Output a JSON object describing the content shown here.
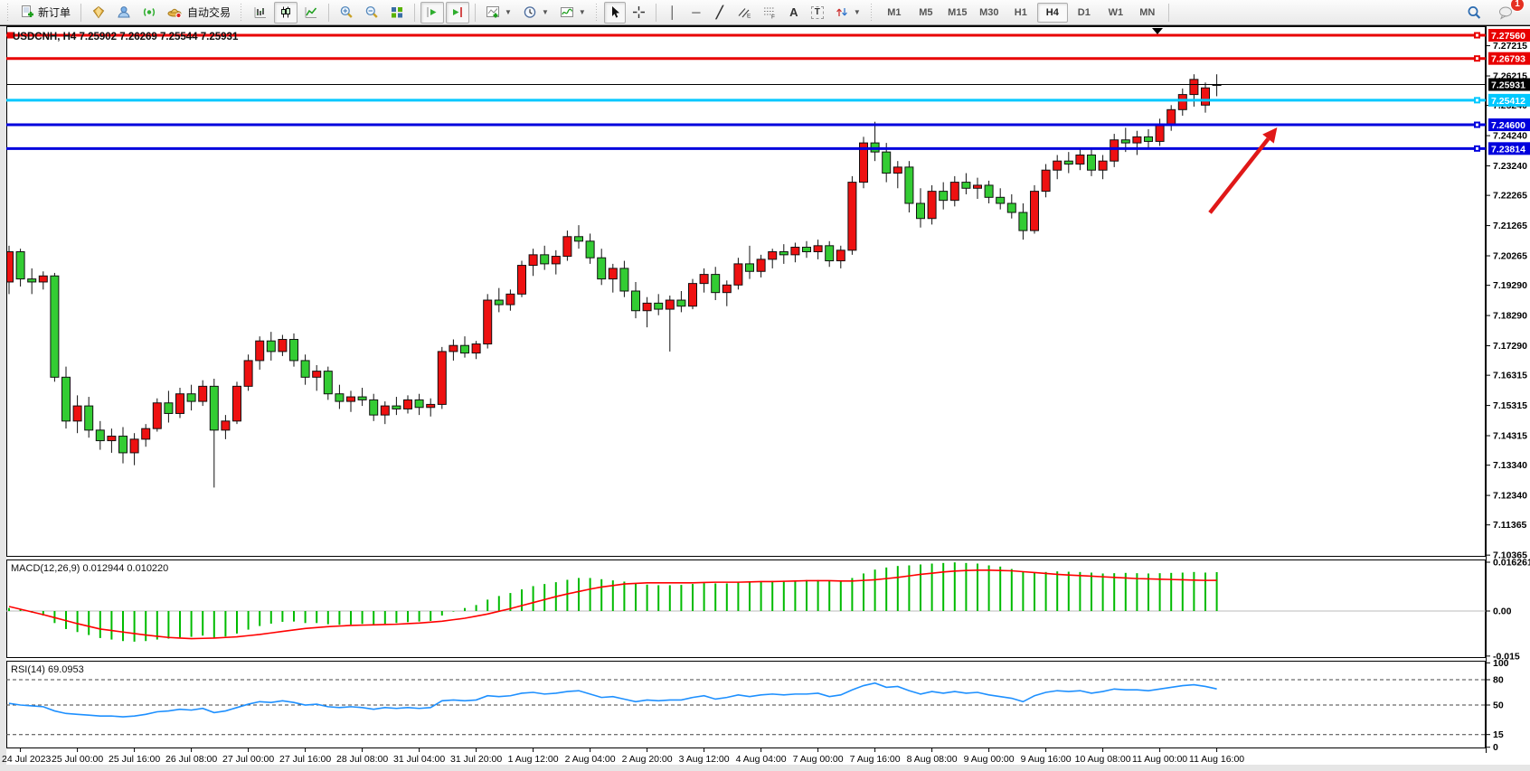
{
  "toolbar": {
    "new_order_label": "新订单",
    "autotrade_label": "自动交易",
    "timeframes": [
      "M1",
      "M5",
      "M15",
      "M30",
      "H1",
      "H4",
      "D1",
      "W1",
      "MN"
    ],
    "active_timeframe": "H4",
    "notification_count": "1"
  },
  "chart": {
    "title": "USDCNH, H4  7.25902 7.26269 7.25544 7.25931",
    "symbol": "USDCNH",
    "timeframe": "H4",
    "open": "7.25902",
    "high": "7.26269",
    "low": "7.25544",
    "close": "7.25931"
  },
  "price_axis": {
    "ticks": [
      "7.27215",
      "7.26215",
      "7.25240",
      "7.24240",
      "7.23240",
      "7.22265",
      "7.21265",
      "7.20265",
      "7.19290",
      "7.18290",
      "7.17290",
      "7.16315",
      "7.15315",
      "7.14315",
      "7.13340",
      "7.12340",
      "7.11365",
      "7.10365"
    ],
    "current_price": "7.25931",
    "current_price_color": "#000000"
  },
  "time_axis": [
    "24 Jul 2023",
    "25 Jul 00:00",
    "25 Jul 16:00",
    "26 Jul 08:00",
    "27 Jul 00:00",
    "27 Jul 16:00",
    "28 Jul 08:00",
    "31 Jul 04:00",
    "31 Jul 20:00",
    "1 Aug 12:00",
    "2 Aug 04:00",
    "2 Aug 20:00",
    "3 Aug 12:00",
    "4 Aug 04:00",
    "7 Aug 00:00",
    "7 Aug 16:00",
    "8 Aug 08:00",
    "9 Aug 00:00",
    "9 Aug 16:00",
    "10 Aug 08:00",
    "11 Aug 00:00",
    "11 Aug 16:00"
  ],
  "indicators": {
    "macd_label": "MACD(12,26,9) 0.012944 0.010220",
    "macd_ticks": [
      "0.016261",
      "0.00",
      "-0.015"
    ],
    "rsi_label": "RSI(14) 69.0953",
    "rsi_ticks": [
      "100",
      "80",
      "50",
      "15",
      "0"
    ],
    "rsi_levels": [
      80,
      50,
      15
    ]
  },
  "chart_data": [
    {
      "type": "candlestick",
      "title": "USDCNH, H4  7.25902 7.26269 7.25544 7.25931",
      "symbol": "USDCNH",
      "timeframe": "H4",
      "x_labels": [
        "24 Jul 2023",
        "25 Jul 00:00",
        "25 Jul 16:00",
        "26 Jul 08:00",
        "27 Jul 00:00",
        "27 Jul 16:00",
        "28 Jul 08:00",
        "31 Jul 04:00",
        "31 Jul 20:00",
        "1 Aug 12:00",
        "2 Aug 04:00",
        "2 Aug 20:00",
        "3 Aug 12:00",
        "4 Aug 04:00",
        "7 Aug 00:00",
        "7 Aug 16:00",
        "8 Aug 08:00",
        "9 Aug 00:00",
        "9 Aug 16:00",
        "10 Aug 08:00",
        "11 Aug 00:00",
        "11 Aug 16:00"
      ],
      "ylim": [
        7.1031,
        7.2786
      ],
      "bull_color": "#ee1111",
      "bear_color": "#33cc33",
      "outline_color": "#111111",
      "candles": [
        [
          7.194,
          7.206,
          7.19,
          7.204
        ],
        [
          7.204,
          7.205,
          7.1925,
          7.195
        ],
        [
          7.195,
          7.1985,
          7.19,
          7.194
        ],
        [
          7.194,
          7.1975,
          7.1915,
          7.196
        ],
        [
          7.196,
          7.197,
          7.161,
          7.1625
        ],
        [
          7.1625,
          7.166,
          7.1455,
          7.148
        ],
        [
          7.148,
          7.1565,
          7.144,
          7.153
        ],
        [
          7.153,
          7.156,
          7.1425,
          7.145
        ],
        [
          7.145,
          7.148,
          7.1385,
          7.1415
        ],
        [
          7.1415,
          7.1455,
          7.1375,
          7.143
        ],
        [
          7.143,
          7.146,
          7.134,
          7.1375
        ],
        [
          7.1375,
          7.144,
          7.1334,
          7.142
        ],
        [
          7.142,
          7.147,
          7.1395,
          7.1455
        ],
        [
          7.1455,
          7.1555,
          7.1445,
          7.154
        ],
        [
          7.154,
          7.158,
          7.1475,
          7.1505
        ],
        [
          7.1505,
          7.159,
          7.149,
          7.157
        ],
        [
          7.157,
          7.16,
          7.1515,
          7.1545
        ],
        [
          7.1545,
          7.1615,
          7.153,
          7.1595
        ],
        [
          7.1595,
          7.162,
          7.126,
          7.145
        ],
        [
          7.145,
          7.15,
          7.142,
          7.148
        ],
        [
          7.148,
          7.161,
          7.147,
          7.1595
        ],
        [
          7.1595,
          7.17,
          7.158,
          7.168
        ],
        [
          7.168,
          7.176,
          7.165,
          7.1745
        ],
        [
          7.1745,
          7.1775,
          7.168,
          7.171
        ],
        [
          7.171,
          7.1765,
          7.1695,
          7.175
        ],
        [
          7.175,
          7.177,
          7.166,
          7.168
        ],
        [
          7.168,
          7.17,
          7.16,
          7.1625
        ],
        [
          7.1625,
          7.1665,
          7.158,
          7.1645
        ],
        [
          7.1645,
          7.166,
          7.155,
          7.157
        ],
        [
          7.157,
          7.16,
          7.152,
          7.1545
        ],
        [
          7.1545,
          7.158,
          7.151,
          7.156
        ],
        [
          7.156,
          7.159,
          7.153,
          7.155
        ],
        [
          7.155,
          7.157,
          7.148,
          7.15
        ],
        [
          7.15,
          7.1545,
          7.147,
          7.153
        ],
        [
          7.153,
          7.156,
          7.15,
          7.152
        ],
        [
          7.152,
          7.1565,
          7.1505,
          7.155
        ],
        [
          7.155,
          7.157,
          7.15,
          7.1525
        ],
        [
          7.1525,
          7.1555,
          7.1495,
          7.1535
        ],
        [
          7.1535,
          7.1725,
          7.152,
          7.171
        ],
        [
          7.171,
          7.175,
          7.168,
          7.173
        ],
        [
          7.173,
          7.176,
          7.169,
          7.1705
        ],
        [
          7.1705,
          7.1745,
          7.1685,
          7.1735
        ],
        [
          7.1735,
          7.19,
          7.172,
          7.188
        ],
        [
          7.188,
          7.192,
          7.184,
          7.1865
        ],
        [
          7.1865,
          7.1915,
          7.1845,
          7.19
        ],
        [
          7.19,
          7.201,
          7.189,
          7.1995
        ],
        [
          7.1995,
          7.205,
          7.196,
          7.203
        ],
        [
          7.203,
          7.206,
          7.198,
          7.2
        ],
        [
          7.2,
          7.2045,
          7.1965,
          7.2025
        ],
        [
          7.2025,
          7.211,
          7.201,
          7.209
        ],
        [
          7.209,
          7.2128,
          7.205,
          7.2075
        ],
        [
          7.2075,
          7.21,
          7.2,
          7.202
        ],
        [
          7.202,
          7.205,
          7.193,
          7.195
        ],
        [
          7.195,
          7.2,
          7.1905,
          7.1985
        ],
        [
          7.1985,
          7.201,
          7.189,
          7.191
        ],
        [
          7.191,
          7.194,
          7.182,
          7.1845
        ],
        [
          7.1845,
          7.189,
          7.179,
          7.187
        ],
        [
          7.187,
          7.19,
          7.183,
          7.185
        ],
        [
          7.185,
          7.1895,
          7.171,
          7.188
        ],
        [
          7.188,
          7.191,
          7.184,
          7.186
        ],
        [
          7.186,
          7.195,
          7.185,
          7.1935
        ],
        [
          7.1935,
          7.1985,
          7.1905,
          7.1965
        ],
        [
          7.1965,
          7.199,
          7.188,
          7.1905
        ],
        [
          7.1905,
          7.1945,
          7.186,
          7.193
        ],
        [
          7.193,
          7.202,
          7.1915,
          7.2
        ],
        [
          7.2,
          7.206,
          7.195,
          7.1975
        ],
        [
          7.1975,
          7.203,
          7.1955,
          7.2015
        ],
        [
          7.2015,
          7.205,
          7.1985,
          7.204
        ],
        [
          7.204,
          7.2065,
          7.2,
          7.203
        ],
        [
          7.203,
          7.207,
          7.2005,
          7.2055
        ],
        [
          7.2055,
          7.2075,
          7.202,
          7.204
        ],
        [
          7.204,
          7.208,
          7.2015,
          7.206
        ],
        [
          7.206,
          7.2075,
          7.199,
          7.201
        ],
        [
          7.201,
          7.206,
          7.1985,
          7.2045
        ],
        [
          7.2045,
          7.229,
          7.203,
          7.227
        ],
        [
          7.227,
          7.242,
          7.225,
          7.24
        ],
        [
          7.24,
          7.247,
          7.234,
          7.237
        ],
        [
          7.237,
          7.24,
          7.227,
          7.23
        ],
        [
          7.23,
          7.234,
          7.225,
          7.232
        ],
        [
          7.232,
          7.234,
          7.217,
          7.22
        ],
        [
          7.22,
          7.225,
          7.212,
          7.215
        ],
        [
          7.215,
          7.226,
          7.213,
          7.224
        ],
        [
          7.224,
          7.227,
          7.218,
          7.221
        ],
        [
          7.221,
          7.229,
          7.219,
          7.227
        ],
        [
          7.227,
          7.23,
          7.223,
          7.225
        ],
        [
          7.225,
          7.2285,
          7.2215,
          7.226
        ],
        [
          7.226,
          7.2275,
          7.22,
          7.222
        ],
        [
          7.222,
          7.225,
          7.218,
          7.22
        ],
        [
          7.22,
          7.223,
          7.215,
          7.217
        ],
        [
          7.217,
          7.22,
          7.208,
          7.211
        ],
        [
          7.211,
          7.226,
          7.21,
          7.224
        ],
        [
          7.224,
          7.233,
          7.222,
          7.231
        ],
        [
          7.231,
          7.236,
          7.228,
          7.234
        ],
        [
          7.234,
          7.237,
          7.23,
          7.233
        ],
        [
          7.233,
          7.238,
          7.231,
          7.236
        ],
        [
          7.236,
          7.238,
          7.229,
          7.231
        ],
        [
          7.231,
          7.236,
          7.228,
          7.234
        ],
        [
          7.234,
          7.243,
          7.232,
          7.241
        ],
        [
          7.241,
          7.245,
          7.237,
          7.24
        ],
        [
          7.24,
          7.244,
          7.236,
          7.242
        ],
        [
          7.242,
          7.2445,
          7.238,
          7.2405
        ],
        [
          7.2405,
          7.248,
          7.239,
          7.246
        ],
        [
          7.246,
          7.2525,
          7.244,
          7.251
        ],
        [
          7.251,
          7.258,
          7.249,
          7.256
        ],
        [
          7.256,
          7.2627,
          7.252,
          7.261
        ],
        [
          7.2525,
          7.26,
          7.25,
          7.2582
        ],
        [
          7.25902,
          7.26269,
          7.25544,
          7.25931
        ]
      ],
      "current_price": 7.25931,
      "hlines": [
        {
          "price": 7.2756,
          "label": "7.27560",
          "color": "#e80000",
          "width": 3
        },
        {
          "price": 7.26793,
          "label": "7.26793",
          "color": "#e80000",
          "width": 3
        },
        {
          "price": 7.25412,
          "label": "7.25412",
          "color": "#00c8ff",
          "width": 3
        },
        {
          "price": 7.246,
          "label": "7.24600",
          "color": "#0000dd",
          "width": 3
        },
        {
          "price": 7.23814,
          "label": "7.23814",
          "color": "#0000dd",
          "width": 3
        }
      ],
      "arrow": {
        "from_index": 105.4,
        "from_price": 7.2169,
        "to_index": 111.3,
        "to_price": 7.2451,
        "color": "#e01818"
      }
    },
    {
      "type": "bar",
      "name": "MACD(12,26,9)",
      "current_values": [
        0.012944,
        0.01022
      ],
      "ylim": [
        -0.01565,
        0.01716
      ],
      "ticks": [
        0.016261,
        0,
        -0.015
      ],
      "histogram_color": "#00bb00",
      "signal_color": "#ff0000",
      "histogram": [
        0.001,
        0.0005,
        -0.0005,
        -0.0015,
        -0.004,
        -0.006,
        -0.007,
        -0.008,
        -0.009,
        -0.0095,
        -0.01,
        -0.0102,
        -0.01,
        -0.0095,
        -0.0092,
        -0.0088,
        -0.0086,
        -0.0082,
        -0.009,
        -0.0085,
        -0.0075,
        -0.0062,
        -0.005,
        -0.0042,
        -0.0036,
        -0.0035,
        -0.004,
        -0.004,
        -0.0044,
        -0.0046,
        -0.0045,
        -0.0043,
        -0.0045,
        -0.0043,
        -0.004,
        -0.0037,
        -0.0035,
        -0.0033,
        -0.0015,
        -0.0002,
        0.001,
        0.002,
        0.0038,
        0.005,
        0.006,
        0.0072,
        0.0083,
        0.009,
        0.0096,
        0.0104,
        0.011,
        0.011,
        0.0106,
        0.0102,
        0.0098,
        0.0092,
        0.0088,
        0.0086,
        0.0086,
        0.0087,
        0.009,
        0.0093,
        0.0092,
        0.0092,
        0.0095,
        0.0097,
        0.0098,
        0.01,
        0.0101,
        0.0102,
        0.0103,
        0.0103,
        0.01,
        0.01,
        0.011,
        0.0125,
        0.0138,
        0.0145,
        0.015,
        0.0152,
        0.0155,
        0.0158,
        0.016,
        0.0162,
        0.016,
        0.0158,
        0.0152,
        0.0148,
        0.014,
        0.0132,
        0.0128,
        0.013,
        0.0132,
        0.0131,
        0.013,
        0.0128,
        0.0125,
        0.0126,
        0.0127,
        0.0126,
        0.0125,
        0.0126,
        0.0127,
        0.0128,
        0.013,
        0.0128,
        0.012944
      ],
      "signal": [
        0.0015,
        0.0006,
        -0.0003,
        -0.0012,
        -0.0022,
        -0.0032,
        -0.0042,
        -0.0051,
        -0.006,
        -0.0065,
        -0.007,
        -0.0075,
        -0.008,
        -0.0084,
        -0.0088,
        -0.009,
        -0.0092,
        -0.0091,
        -0.009,
        -0.0088,
        -0.0086,
        -0.0082,
        -0.0078,
        -0.0073,
        -0.0068,
        -0.0063,
        -0.0058,
        -0.0055,
        -0.0052,
        -0.005,
        -0.0048,
        -0.0047,
        -0.0046,
        -0.0045,
        -0.0044,
        -0.0042,
        -0.004,
        -0.0037,
        -0.0034,
        -0.0029,
        -0.0024,
        -0.0017,
        -0.001,
        -0.0001,
        0.0008,
        0.0018,
        0.0028,
        0.0038,
        0.0048,
        0.0057,
        0.0065,
        0.0073,
        0.008,
        0.0085,
        0.009,
        0.0092,
        0.0094,
        0.0094,
        0.0094,
        0.0094,
        0.0094,
        0.0095,
        0.0096,
        0.0096,
        0.0096,
        0.0097,
        0.0098,
        0.0098,
        0.0099,
        0.01,
        0.0101,
        0.0101,
        0.0101,
        0.01,
        0.01,
        0.0102,
        0.0104,
        0.0108,
        0.0112,
        0.0117,
        0.0122,
        0.0126,
        0.013,
        0.0133,
        0.0135,
        0.0136,
        0.0136,
        0.0135,
        0.0134,
        0.0131,
        0.0128,
        0.0125,
        0.0122,
        0.012,
        0.0118,
        0.0116,
        0.0114,
        0.0112,
        0.011,
        0.0108,
        0.0107,
        0.0106,
        0.0105,
        0.0104,
        0.0103,
        0.0102,
        0.01022
      ]
    },
    {
      "type": "line",
      "name": "RSI(14)",
      "current_value": 69.0953,
      "ylim": [
        -1.4,
        102.5
      ],
      "levels": [
        80,
        50,
        15
      ],
      "line_color": "#1e90ff",
      "values": [
        52,
        50,
        49,
        48,
        43,
        40,
        39,
        38,
        37,
        37,
        36,
        37,
        39,
        42,
        43,
        45,
        44,
        46,
        41,
        43,
        47,
        51,
        54,
        53,
        55,
        53,
        50,
        51,
        48,
        47,
        48,
        47,
        45,
        47,
        46,
        47,
        46,
        47,
        55,
        56,
        55,
        56,
        61,
        60,
        61,
        64,
        65,
        63,
        64,
        66,
        67,
        63,
        59,
        60,
        57,
        54,
        56,
        55,
        56,
        56,
        59,
        61,
        57,
        59,
        62,
        60,
        62,
        63,
        62,
        63,
        63,
        64,
        60,
        62,
        68,
        73,
        76,
        71,
        72,
        67,
        63,
        66,
        64,
        66,
        64,
        65,
        62,
        60,
        58,
        54,
        61,
        65,
        67,
        66,
        67,
        64,
        66,
        69,
        68,
        68,
        67,
        69,
        71,
        73,
        74,
        72,
        69.1
      ]
    }
  ]
}
